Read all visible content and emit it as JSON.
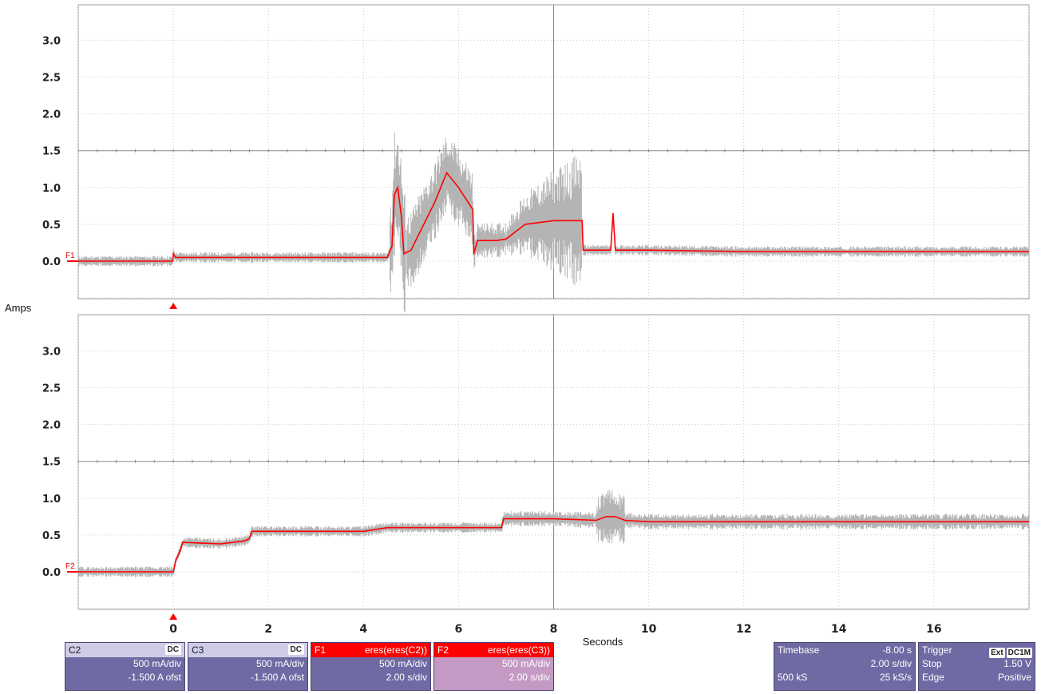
{
  "chart_data": [
    {
      "type": "line",
      "trace_label": "F1",
      "ylabel": "Amps",
      "yticks": [
        "0.0",
        "0.5",
        "1.0",
        "1.5",
        "2.0",
        "2.5",
        "3.0"
      ],
      "ylim": [
        -0.5,
        3.5
      ],
      "xlim": [
        -2,
        18
      ],
      "grid": true,
      "series": [
        {
          "name": "F1",
          "x": [
            -2.0,
            -0.01,
            0.0,
            0.05,
            1.0,
            2.0,
            3.0,
            4.0,
            4.5,
            4.6,
            4.65,
            4.72,
            4.8,
            4.85,
            5.0,
            5.5,
            5.75,
            6.0,
            6.15,
            6.3,
            6.32,
            6.4,
            6.8,
            7.0,
            7.3,
            7.4,
            8.0,
            8.3,
            8.6,
            8.62,
            8.7,
            9.0,
            9.2,
            9.25,
            9.3,
            9.4,
            10.0,
            12.0,
            14.0,
            16.0,
            18.0
          ],
          "y": [
            0.0,
            0.0,
            0.1,
            0.05,
            0.05,
            0.05,
            0.05,
            0.05,
            0.05,
            0.2,
            0.9,
            1.0,
            0.6,
            0.1,
            0.15,
            0.8,
            1.2,
            1.0,
            0.85,
            0.7,
            0.1,
            0.28,
            0.28,
            0.3,
            0.45,
            0.5,
            0.55,
            0.55,
            0.55,
            0.15,
            0.15,
            0.15,
            0.15,
            0.65,
            0.15,
            0.15,
            0.15,
            0.13,
            0.13,
            0.13,
            0.13
          ]
        }
      ]
    },
    {
      "type": "line",
      "trace_label": "F2",
      "ylabel": "Amps",
      "yticks": [
        "0.0",
        "0.5",
        "1.0",
        "1.5",
        "2.0",
        "2.5",
        "3.0"
      ],
      "ylim": [
        -0.5,
        3.5
      ],
      "xlim": [
        -2,
        18
      ],
      "grid": true,
      "series": [
        {
          "name": "F2",
          "x": [
            -2.0,
            -0.01,
            0.0,
            0.05,
            0.15,
            0.2,
            1.0,
            1.5,
            1.6,
            1.65,
            3.0,
            4.0,
            4.5,
            6.0,
            6.9,
            6.95,
            8.0,
            8.9,
            9.1,
            9.3,
            9.5,
            10.0,
            12.0,
            14.0,
            16.0,
            18.0
          ],
          "y": [
            0.0,
            0.0,
            0.0,
            0.15,
            0.3,
            0.4,
            0.38,
            0.42,
            0.45,
            0.55,
            0.55,
            0.55,
            0.6,
            0.6,
            0.6,
            0.72,
            0.72,
            0.7,
            0.75,
            0.75,
            0.7,
            0.68,
            0.68,
            0.68,
            0.68,
            0.68
          ]
        }
      ]
    }
  ],
  "xaxis": {
    "label": "Seconds",
    "ticks": [
      "0",
      "2",
      "4",
      "6",
      "8",
      "10",
      "12",
      "14",
      "16"
    ]
  },
  "colors": {
    "trace": "#ff0000",
    "envelope": "#b4b4b4",
    "panel": "#6f6aa3"
  },
  "channels": [
    {
      "id": "C2",
      "coupling": "DC",
      "scale": "500 mA/div",
      "offset": "-1.500 A ofst"
    },
    {
      "id": "C3",
      "coupling": "DC",
      "scale": "500 mA/div",
      "offset": "-1.500 A ofst"
    }
  ],
  "functions": [
    {
      "id": "F1",
      "expr": "eres(eres(C2))",
      "scale": "500 mA/div",
      "timebase": "2.00 s/div"
    },
    {
      "id": "F2",
      "expr": "eres(eres(C3))",
      "scale": "500 mA/div",
      "timebase": "2.00 s/div"
    }
  ],
  "timebase": {
    "label": "Timebase",
    "delay": "-8.00 s",
    "div": "2.00 s/div",
    "samples": "500 kS",
    "rate": "25 kS/s"
  },
  "trigger": {
    "label": "Trigger",
    "source": "Ext",
    "coupling": "DC1M",
    "mode": "Stop",
    "level": "1.50 V",
    "type": "Edge",
    "slope": "Positive"
  }
}
